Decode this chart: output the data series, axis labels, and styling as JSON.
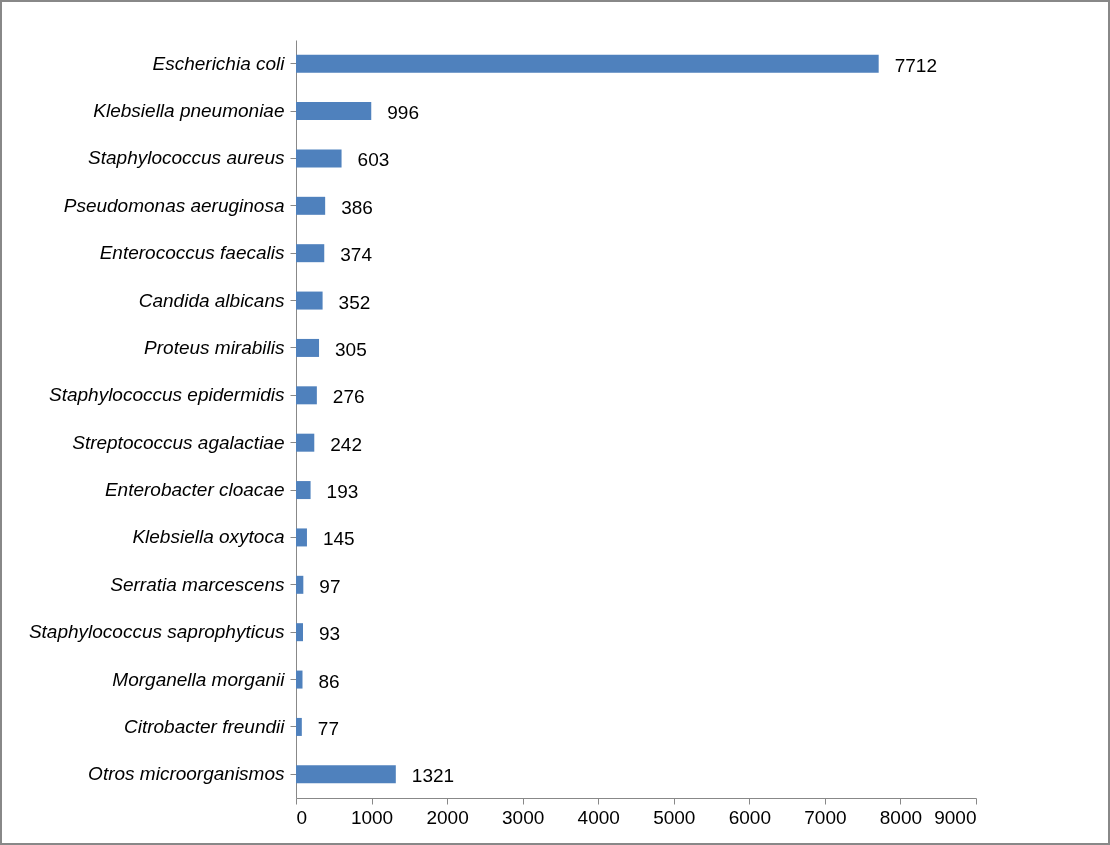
{
  "chart_data": {
    "type": "bar",
    "orientation": "horizontal",
    "categories": [
      "Escherichia coli",
      "Klebsiella pneumoniae",
      "Staphylococcus aureus",
      "Pseudomonas aeruginosa",
      "Enterococcus faecalis",
      "Candida albicans",
      "Proteus mirabilis",
      "Staphylococcus epidermidis",
      "Streptococcus agalactiae",
      "Enterobacter cloacae",
      "Klebsiella oxytoca",
      "Serratia marcescens",
      "Staphylococcus saprophyticus",
      "Morganella morganii",
      "Citrobacter freundii",
      "Otros microorganismos"
    ],
    "values": [
      7712,
      996,
      603,
      386,
      374,
      352,
      305,
      276,
      242,
      193,
      145,
      97,
      93,
      86,
      77,
      1321
    ],
    "color": "#4f81bd",
    "xlim": [
      0,
      9000
    ],
    "xticks": [
      0,
      1000,
      2000,
      3000,
      4000,
      5000,
      6000,
      7000,
      8000,
      9000
    ],
    "data_labels": true,
    "grid": false
  }
}
